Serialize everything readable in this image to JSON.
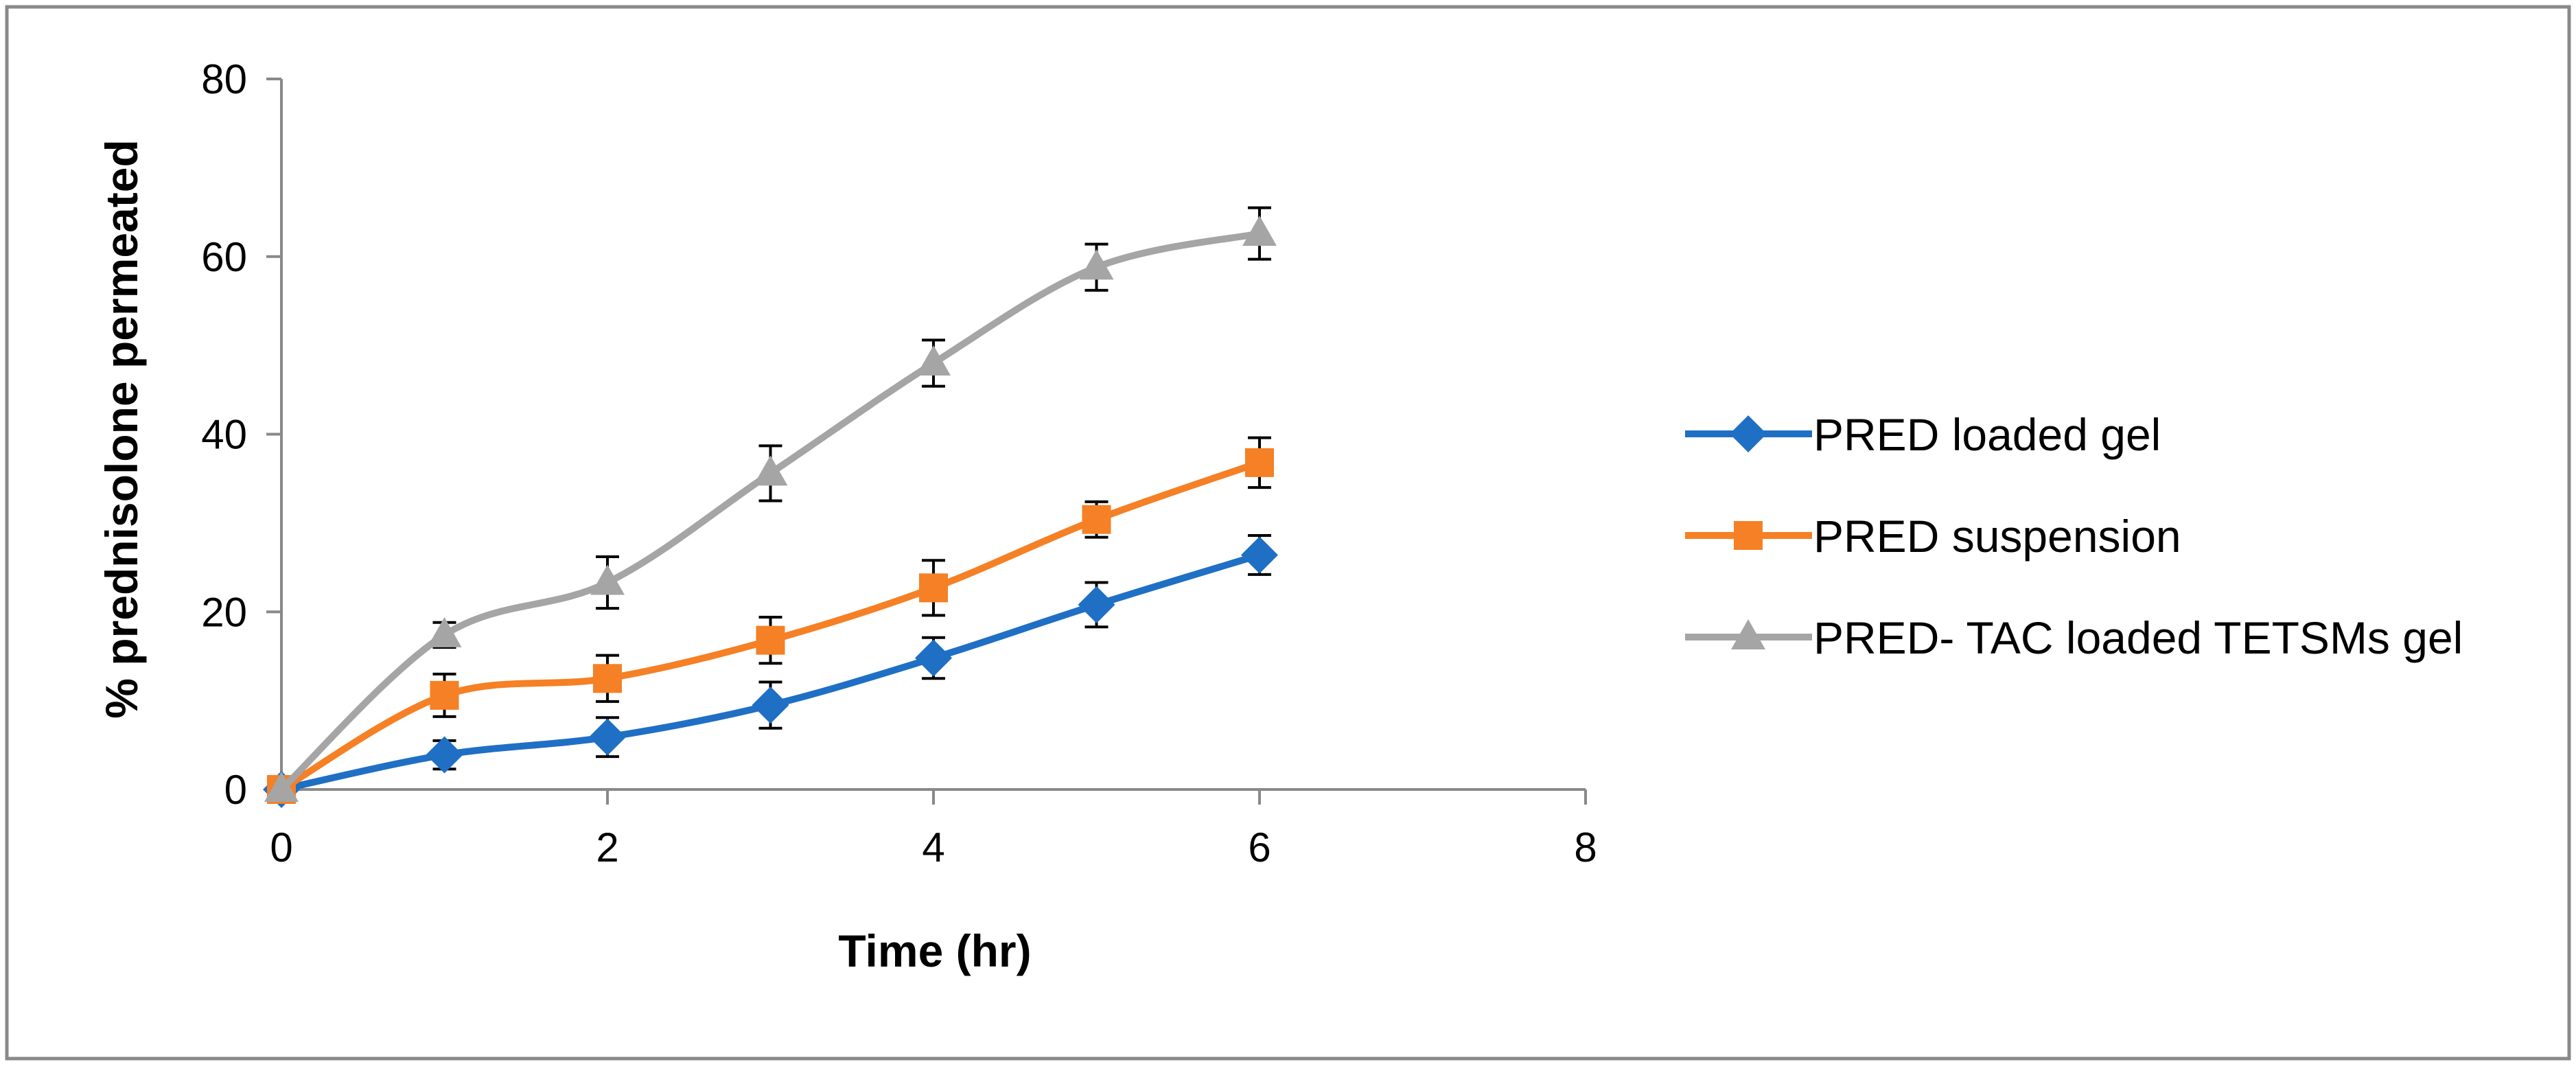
{
  "chart_data": {
    "type": "line",
    "title": "",
    "xlabel": "Time (hr)",
    "ylabel": "% prednisolone permeated",
    "xlim": [
      0,
      8
    ],
    "ylim": [
      0,
      80
    ],
    "xticks": [
      "0",
      "2",
      "4",
      "6",
      "8"
    ],
    "yticks": [
      "0",
      "20",
      "40",
      "60",
      "80"
    ],
    "grid": false,
    "legend_position": "right",
    "smoothed": true,
    "x": [
      0,
      1,
      2,
      3,
      4,
      5,
      6
    ],
    "series": [
      {
        "name": "PRED loaded gel",
        "color": "#1F6FC5",
        "marker": "diamond",
        "values": [
          0,
          3.9,
          5.9,
          9.5,
          14.8,
          20.8,
          26.4
        ],
        "errors": [
          0,
          1.6,
          2.2,
          2.6,
          2.3,
          2.5,
          2.2
        ]
      },
      {
        "name": "PRED suspension",
        "color": "#F58025",
        "marker": "square",
        "values": [
          0,
          10.6,
          12.5,
          16.8,
          22.7,
          30.4,
          36.8
        ],
        "errors": [
          0,
          2.4,
          2.6,
          2.6,
          3.1,
          2.0,
          2.8
        ]
      },
      {
        "name": "PRED- TAC loaded TETSMs gel",
        "color": "#A5A5A5",
        "marker": "triangle",
        "values": [
          0,
          17.4,
          23.3,
          35.6,
          48.0,
          58.8,
          62.6
        ],
        "errors": [
          0,
          1.4,
          2.9,
          3.1,
          2.6,
          2.6,
          2.9
        ]
      }
    ]
  }
}
